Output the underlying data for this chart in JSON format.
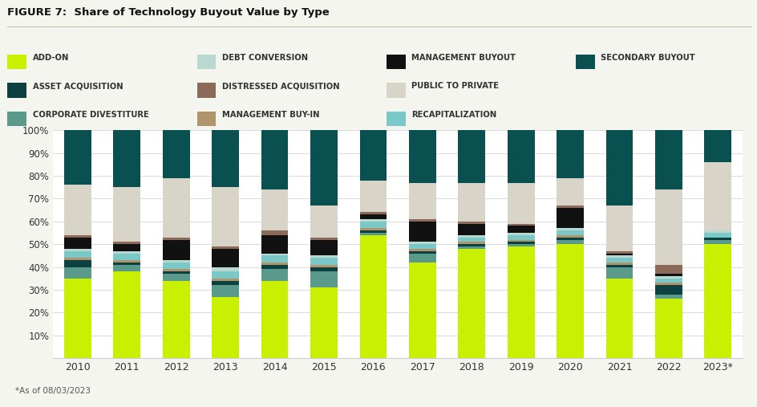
{
  "title": "FIGURE 7:  Share of Technology Buyout Value by Type",
  "footnote": "*As of 08/03/2023",
  "years": [
    "2010",
    "2011",
    "2012",
    "2013",
    "2014",
    "2015",
    "2016",
    "2017",
    "2018",
    "2019",
    "2020",
    "2021",
    "2022",
    "2023*"
  ],
  "categories": [
    "ADD-ON",
    "CORPORATE DIVESTITURE",
    "ASSET ACQUISITION",
    "MANAGEMENT BUY-IN",
    "RECAPITALIZATION",
    "DEBT CONVERSION",
    "MANAGEMENT BUYOUT",
    "DISTRESSED ACQUISITION",
    "PUBLIC TO PRIVATE",
    "SECONDARY BUYOUT"
  ],
  "colors": [
    "#c8f000",
    "#5a9a8a",
    "#0d4040",
    "#b0956a",
    "#7bc8c8",
    "#b8d8d0",
    "#111111",
    "#8b6a5a",
    "#d8d4c8",
    "#0a5050"
  ],
  "data": {
    "ADD-ON": [
      35,
      38,
      34,
      27,
      34,
      31,
      54,
      42,
      48,
      49,
      50,
      35,
      26,
      50
    ],
    "CORPORATE DIVESTITURE": [
      5,
      3,
      3,
      5,
      5,
      7,
      1,
      4,
      1,
      1,
      2,
      5,
      2,
      2
    ],
    "ASSET ACQUISITION": [
      3,
      1,
      1,
      2,
      2,
      2,
      1,
      1,
      1,
      1,
      1,
      1,
      4,
      1
    ],
    "MANAGEMENT BUY-IN": [
      1,
      1,
      1,
      1,
      1,
      1,
      1,
      1,
      1,
      1,
      1,
      1,
      1,
      0
    ],
    "RECAPITALIZATION": [
      3,
      3,
      3,
      3,
      3,
      3,
      3,
      2,
      2,
      2,
      2,
      2,
      2,
      2
    ],
    "DEBT CONVERSION": [
      1,
      1,
      1,
      2,
      1,
      1,
      1,
      1,
      1,
      1,
      1,
      1,
      1,
      1
    ],
    "MANAGEMENT BUYOUT": [
      5,
      3,
      9,
      8,
      8,
      7,
      2,
      9,
      5,
      3,
      9,
      1,
      1,
      0
    ],
    "DISTRESSED ACQUISITION": [
      1,
      1,
      1,
      1,
      2,
      1,
      1,
      1,
      1,
      1,
      1,
      1,
      4,
      0
    ],
    "PUBLIC TO PRIVATE": [
      22,
      24,
      26,
      26,
      18,
      14,
      14,
      16,
      17,
      18,
      12,
      20,
      33,
      30
    ],
    "SECONDARY BUYOUT": [
      24,
      25,
      21,
      25,
      26,
      33,
      22,
      23,
      23,
      23,
      21,
      33,
      26,
      14
    ]
  },
  "background_color": "#f5f5f0",
  "plot_background": "#ffffff",
  "bar_width": 0.55
}
